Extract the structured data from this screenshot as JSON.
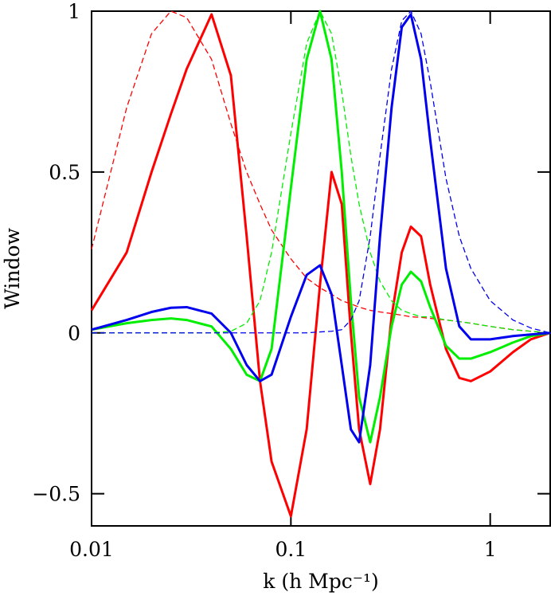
{
  "chart_data": {
    "type": "line",
    "xlabel": "k (h Mpc⁻¹)",
    "ylabel": "Window",
    "xscale": "log",
    "xlim": [
      0.01,
      2
    ],
    "xticks": [
      0.01,
      0.1,
      1
    ],
    "ylim": [
      -0.6,
      1
    ],
    "yticks": [
      {
        "value": -0.5,
        "label": "−0.5"
      },
      0,
      0.5,
      1
    ],
    "x": [
      0.01,
      0.015,
      0.02,
      0.025,
      0.03,
      0.04,
      0.05,
      0.06,
      0.07,
      0.08,
      0.1,
      0.12,
      0.14,
      0.16,
      0.18,
      0.2,
      0.22,
      0.25,
      0.28,
      0.32,
      0.36,
      0.4,
      0.45,
      0.5,
      0.6,
      0.7,
      0.8,
      1,
      1.3,
      1.6,
      2
    ],
    "series": [
      {
        "color": "#ff0000",
        "line_style": "solid",
        "values": [
          0.07,
          0.25,
          0.5,
          0.68,
          0.82,
          0.99,
          0.8,
          0.3,
          -0.15,
          -0.4,
          -0.57,
          -0.3,
          0.15,
          0.5,
          0.4,
          0.0,
          -0.3,
          -0.47,
          -0.3,
          0.05,
          0.25,
          0.33,
          0.3,
          0.15,
          -0.05,
          -0.14,
          -0.15,
          -0.12,
          -0.06,
          -0.02,
          0
        ]
      },
      {
        "color": "#ff0000",
        "line_style": "dashed",
        "values": [
          0.26,
          0.7,
          0.93,
          1.0,
          0.98,
          0.85,
          0.65,
          0.5,
          0.4,
          0.32,
          0.23,
          0.17,
          0.14,
          0.12,
          0.1,
          0.09,
          0.08,
          0.07,
          0.065,
          0.06,
          0.055,
          0.05,
          0.048,
          0.045,
          0.04,
          0.035,
          0.03,
          0.02,
          0.01,
          0.005,
          0
        ]
      },
      {
        "color": "#00ee00",
        "line_style": "solid",
        "values": [
          0.01,
          0.03,
          0.04,
          0.045,
          0.04,
          0.02,
          -0.05,
          -0.13,
          -0.15,
          -0.05,
          0.45,
          0.85,
          1.0,
          0.85,
          0.5,
          0.1,
          -0.2,
          -0.34,
          -0.2,
          0.02,
          0.15,
          0.19,
          0.16,
          0.08,
          -0.04,
          -0.08,
          -0.08,
          -0.06,
          -0.03,
          -0.01,
          0
        ]
      },
      {
        "color": "#00ee00",
        "line_style": "dashed",
        "values": [
          0,
          0,
          0,
          0,
          0,
          0,
          0.005,
          0.03,
          0.1,
          0.25,
          0.62,
          0.9,
          1.0,
          0.93,
          0.75,
          0.55,
          0.4,
          0.25,
          0.16,
          0.1,
          0.07,
          0.06,
          0.05,
          0.05,
          0.04,
          0.035,
          0.03,
          0.02,
          0.01,
          0.005,
          0
        ]
      },
      {
        "color": "#0000ee",
        "line_style": "solid",
        "values": [
          0.01,
          0.04,
          0.065,
          0.078,
          0.08,
          0.06,
          0.0,
          -0.1,
          -0.15,
          -0.13,
          0.05,
          0.18,
          0.21,
          0.12,
          -0.1,
          -0.3,
          -0.34,
          -0.1,
          0.3,
          0.7,
          0.95,
          0.99,
          0.85,
          0.6,
          0.2,
          0.02,
          -0.02,
          -0.02,
          -0.01,
          -0.005,
          0
        ]
      },
      {
        "color": "#0000ee",
        "line_style": "dashed",
        "values": [
          0,
          0,
          0,
          0,
          0,
          0,
          0,
          0,
          0,
          0,
          0,
          0,
          0.003,
          0.005,
          0.01,
          0.04,
          0.1,
          0.3,
          0.55,
          0.82,
          0.97,
          1.0,
          0.93,
          0.78,
          0.48,
          0.3,
          0.2,
          0.1,
          0.04,
          0.015,
          0
        ]
      }
    ]
  }
}
